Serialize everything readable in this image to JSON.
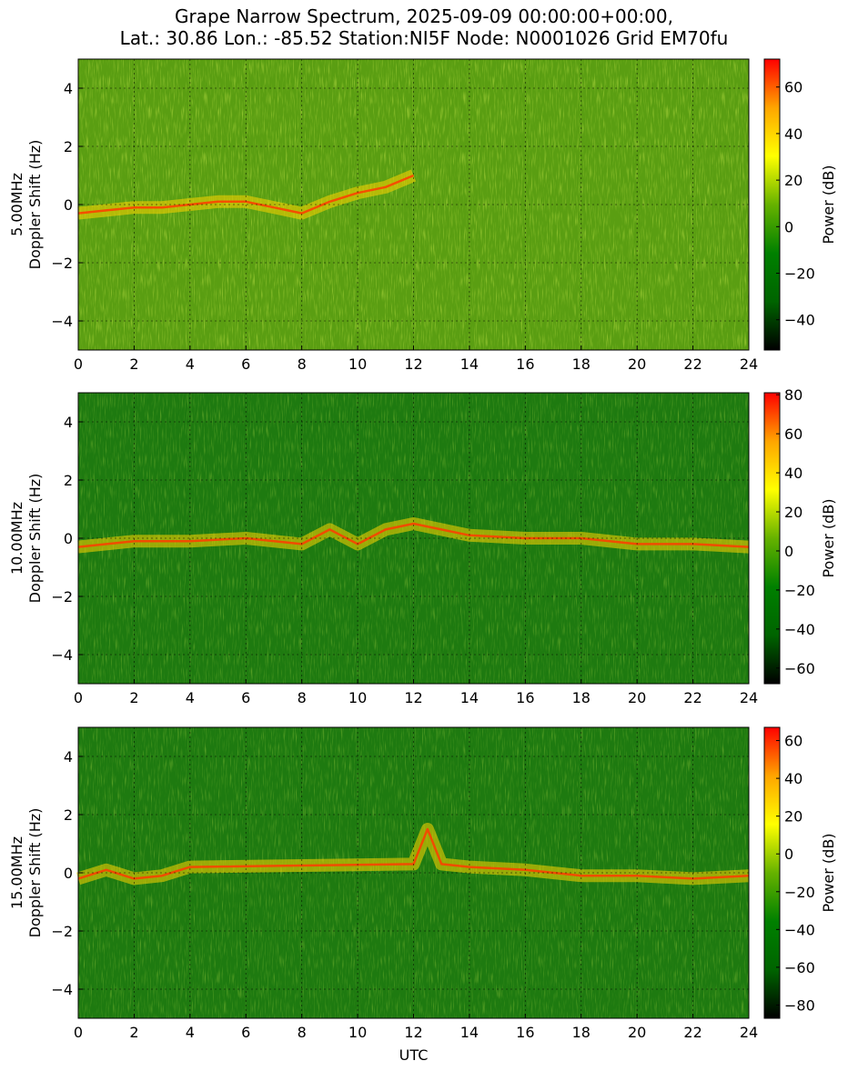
{
  "title_line1": "Grape Narrow Spectrum, 2025-09-09 00:00:00+00:00,",
  "title_line2": "Lat.: 30.86 Lon.: -85.52 Station:NI5F Node: N0001026 Grid EM70fu",
  "colors": {
    "colormap": [
      "#000000",
      "#006400",
      "#008000",
      "#66b200",
      "#ffff00",
      "#ffa500",
      "#ff0000"
    ],
    "panel_background": "#1e7a10"
  },
  "chart_data": [
    {
      "type": "heatmap",
      "xlabel": "",
      "ylabel": "5.00MHz\nDoppler Shift (Hz)",
      "xlim": [
        0,
        24
      ],
      "ylim": [
        -5,
        5
      ],
      "xticks": [
        "0",
        "2",
        "4",
        "6",
        "8",
        "10",
        "12",
        "14",
        "16",
        "18",
        "20",
        "22",
        "24"
      ],
      "yticks": [
        "4",
        "2",
        "0",
        "−2",
        "−4"
      ],
      "grid": true,
      "colorbar": {
        "label": "Power (dB)",
        "range": [
          -53,
          72
        ],
        "ticks": [
          "60",
          "40",
          "20",
          "0",
          "−20",
          "−40"
        ]
      },
      "approx_doppler_trace": [
        [
          0,
          -0.3
        ],
        [
          1,
          -0.2
        ],
        [
          2,
          -0.1
        ],
        [
          3,
          -0.1
        ],
        [
          4,
          0.0
        ],
        [
          5,
          0.1
        ],
        [
          6,
          0.1
        ],
        [
          7,
          -0.1
        ],
        [
          8,
          -0.3
        ],
        [
          9,
          0.1
        ],
        [
          10,
          0.4
        ],
        [
          11,
          0.6
        ],
        [
          12,
          1.0
        ]
      ]
    },
    {
      "type": "heatmap",
      "xlabel": "",
      "ylabel": "10.00MHz\nDoppler Shift (Hz)",
      "xlim": [
        0,
        24
      ],
      "ylim": [
        -5,
        5
      ],
      "xticks": [
        "0",
        "2",
        "4",
        "6",
        "8",
        "10",
        "12",
        "14",
        "16",
        "18",
        "20",
        "22",
        "24"
      ],
      "yticks": [
        "4",
        "2",
        "0",
        "−2",
        "−4"
      ],
      "grid": true,
      "colorbar": {
        "label": "Power (dB)",
        "range": [
          -68,
          81
        ],
        "ticks": [
          "80",
          "60",
          "40",
          "20",
          "0",
          "−20",
          "−40",
          "−60"
        ]
      },
      "approx_doppler_trace": [
        [
          0,
          -0.3
        ],
        [
          2,
          -0.1
        ],
        [
          4,
          -0.1
        ],
        [
          6,
          0.0
        ],
        [
          8,
          -0.2
        ],
        [
          9,
          0.3
        ],
        [
          10,
          -0.2
        ],
        [
          11,
          0.3
        ],
        [
          12,
          0.5
        ],
        [
          14,
          0.1
        ],
        [
          16,
          0.0
        ],
        [
          18,
          0.0
        ],
        [
          20,
          -0.2
        ],
        [
          22,
          -0.2
        ],
        [
          24,
          -0.3
        ]
      ]
    },
    {
      "type": "heatmap",
      "xlabel": "UTC",
      "ylabel": "15.00MHz\nDoppler Shift (Hz)",
      "xlim": [
        0,
        24
      ],
      "ylim": [
        -5,
        5
      ],
      "xticks": [
        "0",
        "2",
        "4",
        "6",
        "8",
        "10",
        "12",
        "14",
        "16",
        "18",
        "20",
        "22",
        "24"
      ],
      "yticks": [
        "4",
        "2",
        "0",
        "−2",
        "−4"
      ],
      "grid": true,
      "colorbar": {
        "label": "Power (dB)",
        "range": [
          -87,
          67
        ],
        "ticks": [
          "60",
          "40",
          "20",
          "0",
          "−20",
          "−40",
          "−60",
          "−80"
        ]
      },
      "approx_doppler_trace": [
        [
          0,
          -0.2
        ],
        [
          1,
          0.1
        ],
        [
          2,
          -0.2
        ],
        [
          3,
          -0.1
        ],
        [
          4,
          0.2
        ],
        [
          12,
          0.3
        ],
        [
          12.5,
          1.5
        ],
        [
          13,
          0.3
        ],
        [
          14,
          0.2
        ],
        [
          16,
          0.1
        ],
        [
          18,
          -0.1
        ],
        [
          20,
          -0.1
        ],
        [
          22,
          -0.2
        ],
        [
          24,
          -0.1
        ]
      ]
    }
  ]
}
